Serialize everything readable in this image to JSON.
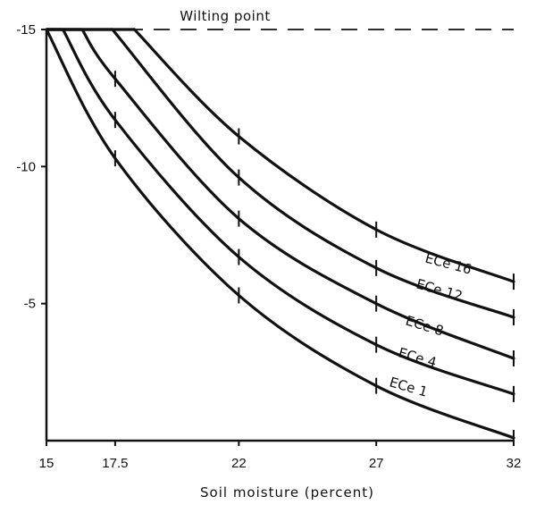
{
  "chart_data": {
    "type": "line",
    "xlabel": "Soil moisture (percent)",
    "ylabel": "",
    "xlim": [
      15,
      32
    ],
    "ylim": [
      0,
      -15
    ],
    "x_ticks": [
      "15",
      "17.5",
      "22",
      "27",
      "32"
    ],
    "y_ticks": [
      "-15",
      "-10",
      "-5"
    ],
    "annotation": "Wilting point",
    "wilting_point": -15,
    "grid": false,
    "series": [
      {
        "name": "ECe 1",
        "x": [
          15,
          17.5,
          22,
          27,
          32
        ],
        "y": [
          -15,
          -10.3,
          -5.3,
          -2.0,
          -0.1
        ]
      },
      {
        "name": "ECe 4",
        "x": [
          15.6,
          17.5,
          22,
          27,
          32
        ],
        "y": [
          -15,
          -11.7,
          -6.7,
          -3.5,
          -1.7
        ]
      },
      {
        "name": "ECe 8",
        "x": [
          16.3,
          17.5,
          22,
          27,
          32
        ],
        "y": [
          -15,
          -13.2,
          -8.1,
          -5.0,
          -3.0
        ]
      },
      {
        "name": "ECe 12",
        "x": [
          17.4,
          22,
          27,
          32
        ],
        "y": [
          -15,
          -9.6,
          -6.3,
          -4.5
        ]
      },
      {
        "name": "ECe 16",
        "x": [
          18.2,
          22,
          27,
          32
        ],
        "y": [
          -15,
          -11.1,
          -7.7,
          -5.8
        ]
      }
    ]
  }
}
